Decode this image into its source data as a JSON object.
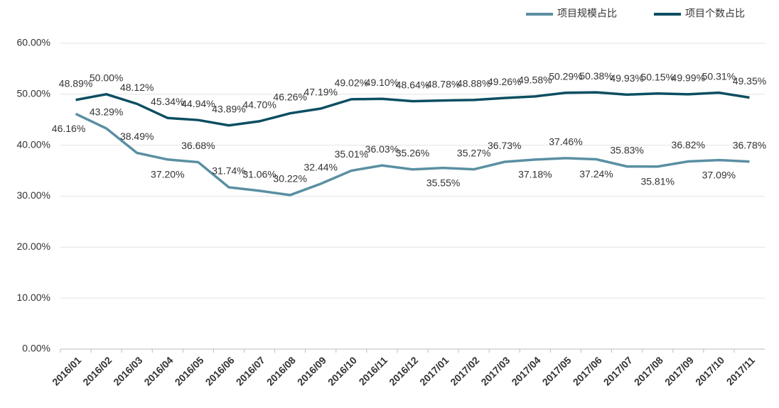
{
  "chart_data": {
    "type": "line",
    "categories": [
      "2016/01",
      "2016/02",
      "2016/03",
      "2016/04",
      "2016/05",
      "2016/06",
      "2016/07",
      "2016/08",
      "2016/09",
      "2016/10",
      "2016/11",
      "2016/12",
      "2017/01",
      "2017/02",
      "2017/03",
      "2017/04",
      "2017/05",
      "2017/06",
      "2017/07",
      "2017/08",
      "2017/09",
      "2017/10",
      "2017/11"
    ],
    "series": [
      {
        "name": "项目规模占比",
        "color": "#5a8fa2",
        "values": [
          46.16,
          43.29,
          38.49,
          37.2,
          36.68,
          31.74,
          31.06,
          30.22,
          32.44,
          35.01,
          36.03,
          35.26,
          35.55,
          35.27,
          36.73,
          37.18,
          37.46,
          37.24,
          35.83,
          35.81,
          36.82,
          37.09,
          36.78
        ],
        "value_labels": [
          "46.16%",
          "43.29%",
          "38.49%",
          "37.20%",
          "36.68%",
          "31.74%",
          "31.06%",
          "30.22%",
          "32.44%",
          "35.01%",
          "36.03%",
          "35.26%",
          "35.55%",
          "35.27%",
          "36.73%",
          "37.18%",
          "37.46%",
          "37.24%",
          "35.83%",
          "35.81%",
          "36.82%",
          "37.09%",
          "36.78%"
        ]
      },
      {
        "name": "项目个数占比",
        "color": "#0c4e61",
        "values": [
          48.89,
          50.0,
          48.12,
          45.34,
          44.94,
          43.89,
          44.7,
          46.26,
          47.19,
          49.02,
          49.1,
          48.64,
          48.78,
          48.88,
          49.26,
          49.58,
          50.29,
          50.38,
          49.93,
          50.15,
          49.99,
          50.31,
          49.35
        ],
        "value_labels": [
          "48.89%",
          "50.00%",
          "48.12%",
          "45.34%",
          "44.94%",
          "43.89%",
          "44.70%",
          "46.26%",
          "47.19%",
          "49.02%",
          "49.10%",
          "48.64%",
          "48.78%",
          "48.88%",
          "49.26%",
          "49.58%",
          "50.29%",
          "50.38%",
          "49.93%",
          "50.15%",
          "49.99%",
          "50.31%",
          "49.35%"
        ]
      }
    ],
    "ylim": [
      0,
      60
    ],
    "yticks": [
      {
        "value": 0,
        "label": "0.00%"
      },
      {
        "value": 10,
        "label": "10.00%"
      },
      {
        "value": 20,
        "label": "20.00%"
      },
      {
        "value": 30,
        "label": "30.00%"
      },
      {
        "value": 40,
        "label": "40.00%"
      },
      {
        "value": 50,
        "label": "50.00%"
      },
      {
        "value": 60,
        "label": "60.00%"
      }
    ],
    "grid": true,
    "legend": "top-right"
  }
}
